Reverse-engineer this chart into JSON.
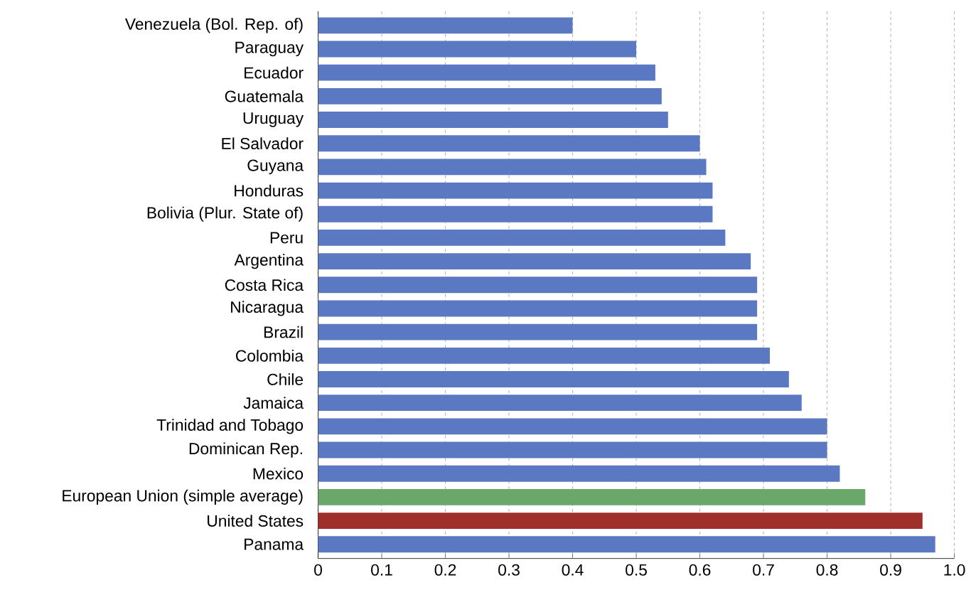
{
  "chart_data": {
    "type": "bar",
    "orientation": "horizontal",
    "categories": [
      "Venezuela (Bol. Rep. of)",
      "Paraguay",
      "Ecuador",
      "Guatemala",
      "Uruguay",
      "El Salvador",
      "Guyana",
      "Honduras",
      "Bolivia (Plur. State of)",
      "Peru",
      "Argentina",
      "Costa Rica",
      "Nicaragua",
      "Brazil",
      "Colombia",
      "Chile",
      "Jamaica",
      "Trinidad and Tobago",
      "Dominican Rep.",
      "Mexico",
      "European Union (simple average)",
      "United States",
      "Panama"
    ],
    "values": [
      0.4,
      0.5,
      0.53,
      0.54,
      0.55,
      0.6,
      0.61,
      0.62,
      0.62,
      0.64,
      0.68,
      0.69,
      0.69,
      0.69,
      0.71,
      0.74,
      0.76,
      0.8,
      0.8,
      0.82,
      0.86,
      0.95,
      0.97
    ],
    "colors": [
      "#5b78c2",
      "#5b78c2",
      "#5b78c2",
      "#5b78c2",
      "#5b78c2",
      "#5b78c2",
      "#5b78c2",
      "#5b78c2",
      "#5b78c2",
      "#5b78c2",
      "#5b78c2",
      "#5b78c2",
      "#5b78c2",
      "#5b78c2",
      "#5b78c2",
      "#5b78c2",
      "#5b78c2",
      "#5b78c2",
      "#5b78c2",
      "#5b78c2",
      "#6aa76b",
      "#9e2f2b",
      "#5b78c2"
    ],
    "xlim": [
      0,
      1.0
    ],
    "xticks": [
      0,
      0.1,
      0.2,
      0.3,
      0.4,
      0.5,
      0.6,
      0.7,
      0.8,
      0.9,
      {
        "value": 1.0,
        "label": "1.0"
      }
    ],
    "grid": "x"
  }
}
